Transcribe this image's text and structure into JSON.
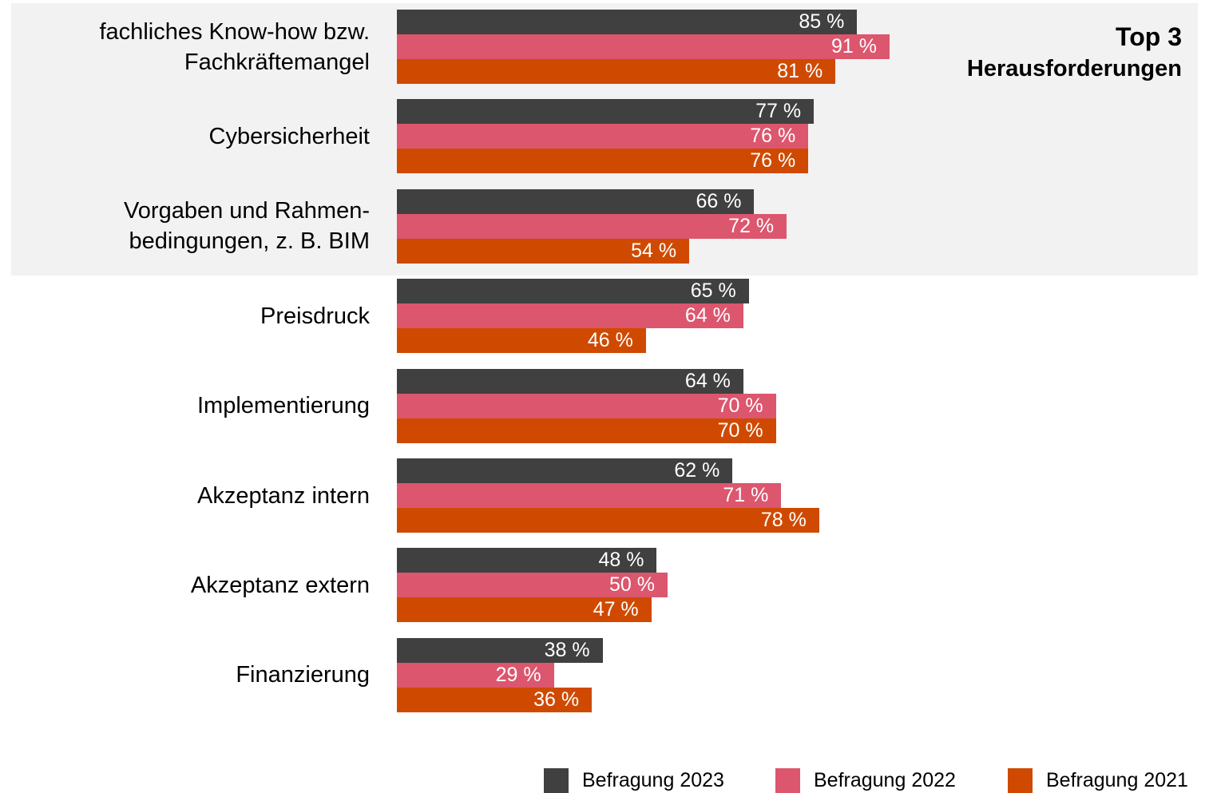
{
  "chart_data": {
    "type": "bar",
    "orientation": "horizontal",
    "unit": "%",
    "categories": [
      "fachliches Know-how bzw. Fachkräftemangel",
      "Cybersicherheit",
      "Vorgaben und Rahmen- bedingungen, z. B. BIM",
      "Preisdruck",
      "Implementierung",
      "Akzeptanz intern",
      "Akzeptanz extern",
      "Finanzierung"
    ],
    "category_lines": [
      [
        "fachliches Know-how bzw.",
        "Fachkräftemangel"
      ],
      [
        "Cybersicherheit"
      ],
      [
        "Vorgaben und Rahmen-",
        "bedingungen, z. B. BIM"
      ],
      [
        "Preisdruck"
      ],
      [
        "Implementierung"
      ],
      [
        "Akzeptanz intern"
      ],
      [
        "Akzeptanz extern"
      ],
      [
        "Finanzierung"
      ]
    ],
    "series": [
      {
        "name": "Befragung 2023",
        "color": "#404040",
        "values": [
          85,
          77,
          66,
          65,
          64,
          62,
          48,
          38
        ]
      },
      {
        "name": "Befragung 2022",
        "color": "#dc566e",
        "values": [
          91,
          76,
          72,
          64,
          70,
          71,
          50,
          29
        ]
      },
      {
        "name": "Befragung 2021",
        "color": "#cf4a00",
        "values": [
          81,
          76,
          54,
          46,
          70,
          78,
          47,
          36
        ]
      }
    ],
    "data_label_suffix": " %",
    "highlight": {
      "title": "Top 3",
      "subtitle": "Herausforderungen",
      "categories_count": 3,
      "background": "#f2f2f2"
    },
    "legend_position": "bottom-right",
    "grid": false
  }
}
